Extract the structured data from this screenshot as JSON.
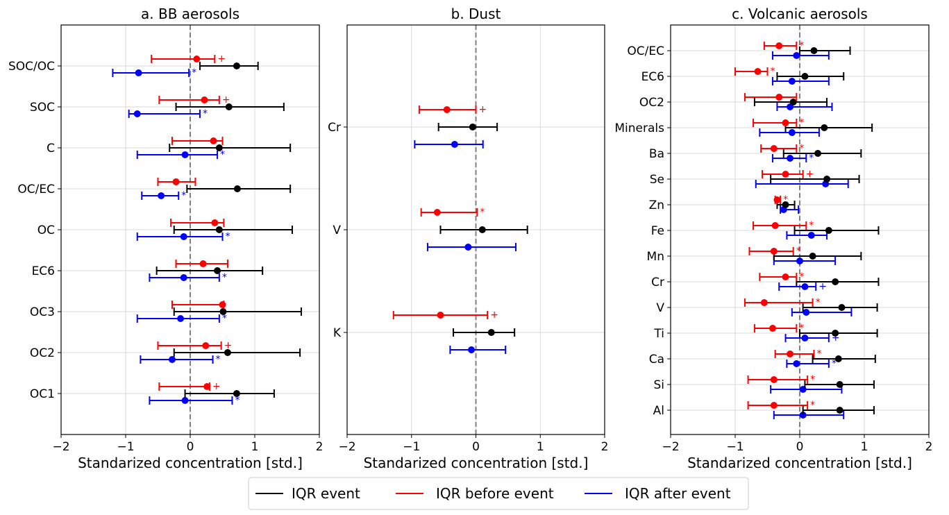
{
  "colors": {
    "event": "#000000",
    "before": "#ff0000",
    "after": "#0000ff",
    "grid": "#d9d9d9",
    "zero": "#808080"
  },
  "legend": {
    "event": "IQR event",
    "before": "IQR before event",
    "after": "IQR after event"
  },
  "chart_data": [
    {
      "type": "errorbar",
      "title": "a. BB aerosols",
      "xlabel": "Standarized concentration [std.]",
      "xlim": [
        -2,
        2
      ],
      "xticks": [
        "−2",
        "−1",
        "0",
        "1",
        "2"
      ],
      "grid": true,
      "categories": [
        "SOC/OC",
        "SOC",
        "C",
        "OC/EC",
        "OC",
        "EC6",
        "OC3",
        "OC2",
        "OC1"
      ],
      "series": [
        {
          "name": "IQR event",
          "key": "event",
          "median": [
            0.72,
            0.6,
            0.45,
            0.73,
            0.45,
            0.42,
            0.51,
            0.58,
            0.72
          ],
          "low": [
            0.15,
            -0.22,
            -0.32,
            -0.05,
            -0.25,
            -0.52,
            -0.25,
            -0.25,
            -0.08
          ],
          "high": [
            1.05,
            1.45,
            1.55,
            1.55,
            1.58,
            1.12,
            1.72,
            1.7,
            1.3
          ],
          "marks": [
            "",
            "",
            "",
            "",
            "",
            "",
            "",
            "",
            ""
          ]
        },
        {
          "name": "IQR before event",
          "key": "before",
          "median": [
            0.1,
            0.22,
            0.36,
            -0.22,
            0.38,
            0.2,
            0.5,
            0.24,
            0.26
          ],
          "low": [
            -0.6,
            -0.48,
            -0.28,
            -0.5,
            -0.3,
            -0.22,
            -0.28,
            -0.5,
            -0.48
          ],
          "high": [
            0.38,
            0.45,
            0.5,
            0.08,
            0.52,
            0.58,
            0.52,
            0.48,
            0.3
          ],
          "marks": [
            "+",
            "+",
            "",
            "",
            "",
            "",
            "",
            "+",
            "+"
          ]
        },
        {
          "name": "IQR after event",
          "key": "after",
          "median": [
            -0.8,
            -0.82,
            -0.08,
            -0.45,
            -0.1,
            -0.1,
            -0.15,
            -0.28,
            -0.08
          ],
          "low": [
            -1.2,
            -0.95,
            -0.82,
            -0.75,
            -0.82,
            -0.63,
            -0.82,
            -0.77,
            -0.63
          ],
          "high": [
            -0.02,
            0.15,
            0.42,
            -0.18,
            0.5,
            0.45,
            0.45,
            0.35,
            0.65
          ],
          "marks": [
            "*",
            "*",
            "*",
            "*",
            "*",
            "*",
            "*",
            "*",
            "*"
          ]
        }
      ]
    },
    {
      "type": "errorbar",
      "title": "b. Dust",
      "xlabel": "Standarized concentration [std.]",
      "xlim": [
        -2,
        2
      ],
      "xticks": [
        "−2",
        "−1",
        "0",
        "1",
        "2"
      ],
      "grid": true,
      "categories": [
        "Cr",
        "V",
        "K"
      ],
      "series": [
        {
          "name": "IQR event",
          "key": "event",
          "median": [
            -0.05,
            0.1,
            0.24
          ],
          "low": [
            -0.58,
            -0.55,
            -0.35
          ],
          "high": [
            0.33,
            0.8,
            0.6
          ],
          "marks": [
            "",
            "",
            ""
          ]
        },
        {
          "name": "IQR before event",
          "key": "before",
          "median": [
            -0.45,
            -0.6,
            -0.55
          ],
          "low": [
            -0.88,
            -0.85,
            -1.28
          ],
          "high": [
            0.0,
            0.02,
            0.18
          ],
          "marks": [
            "+",
            "*",
            "+"
          ]
        },
        {
          "name": "IQR after event",
          "key": "after",
          "median": [
            -0.33,
            -0.12,
            -0.07
          ],
          "low": [
            -0.95,
            -0.75,
            -0.4
          ],
          "high": [
            0.11,
            0.62,
            0.46
          ],
          "marks": [
            "",
            "",
            ""
          ]
        }
      ]
    },
    {
      "type": "errorbar",
      "title": "c. Volcanic aerosols",
      "xlabel": "Standarized concentration [std.]",
      "xlim": [
        -2,
        2
      ],
      "xticks": [
        "−2",
        "−1",
        "0",
        "1",
        "2"
      ],
      "grid": true,
      "categories": [
        "OC/EC",
        "EC6",
        "OC2",
        "Minerals",
        "Ba",
        "Se",
        "Zn",
        "Fe",
        "Mn",
        "Cr",
        "V",
        "Ti",
        "Ca",
        "Si",
        "Al"
      ],
      "series": [
        {
          "name": "IQR event",
          "key": "event",
          "median": [
            0.22,
            0.08,
            -0.1,
            0.38,
            0.28,
            0.42,
            -0.22,
            0.45,
            0.2,
            0.55,
            0.65,
            0.55,
            0.6,
            0.62,
            0.62
          ],
          "low": [
            0.0,
            -0.35,
            -0.7,
            -0.22,
            -0.25,
            -0.45,
            -0.35,
            -0.08,
            -0.4,
            -0.05,
            0.05,
            0.0,
            0.2,
            0.08,
            0.05
          ],
          "high": [
            0.78,
            0.68,
            0.42,
            1.12,
            0.95,
            0.92,
            -0.08,
            1.22,
            0.95,
            1.22,
            1.2,
            1.2,
            1.17,
            1.15,
            1.15
          ]
        },
        {
          "name": "IQR before event",
          "key": "before",
          "median": [
            -0.32,
            -0.65,
            -0.32,
            -0.22,
            -0.4,
            -0.22,
            -0.35,
            -0.38,
            -0.4,
            -0.22,
            -0.55,
            -0.42,
            -0.15,
            -0.4,
            -0.4
          ],
          "low": [
            -0.55,
            -1.0,
            -0.85,
            -0.72,
            -0.6,
            -0.58,
            -0.38,
            -0.72,
            -0.78,
            -0.62,
            -0.85,
            -0.7,
            -0.38,
            -0.8,
            -0.8
          ],
          "high": [
            -0.05,
            -0.5,
            -0.05,
            -0.05,
            -0.05,
            0.05,
            -0.3,
            0.1,
            -0.1,
            -0.05,
            0.2,
            -0.05,
            0.22,
            0.12,
            0.12
          ],
          "marks": [
            "*",
            "*",
            "",
            "*",
            "*",
            "+",
            "*",
            "*",
            "*",
            "*",
            "*",
            "*",
            "*",
            "*",
            "*"
          ]
        },
        {
          "name": "IQR after event",
          "key": "after",
          "median": [
            -0.05,
            -0.12,
            -0.15,
            -0.12,
            -0.15,
            0.4,
            -0.25,
            0.18,
            0.0,
            0.08,
            0.1,
            0.08,
            -0.05,
            0.05,
            0.05
          ],
          "low": [
            -0.42,
            -0.42,
            -0.35,
            -0.62,
            -0.42,
            -0.68,
            -0.3,
            -0.2,
            -0.4,
            -0.32,
            -0.12,
            -0.22,
            -0.2,
            -0.45,
            -0.4
          ],
          "high": [
            0.45,
            0.45,
            0.5,
            0.3,
            0.1,
            0.75,
            -0.02,
            0.42,
            0.55,
            0.25,
            0.8,
            0.45,
            0.45,
            0.65,
            0.68
          ],
          "marks": [
            "",
            "",
            "",
            "",
            "*",
            "",
            "",
            "",
            "",
            "+",
            "",
            "+",
            "*",
            "",
            ""
          ]
        }
      ]
    }
  ]
}
